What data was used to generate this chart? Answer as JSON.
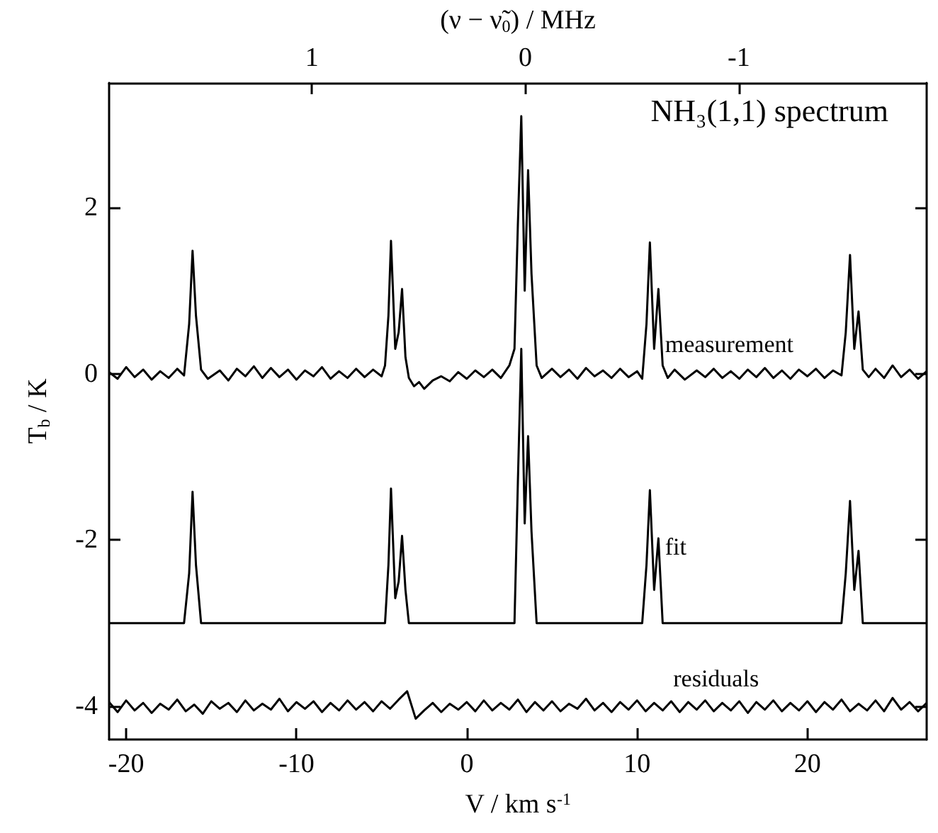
{
  "chart_data": {
    "type": "line",
    "title": "NH₃(1,1) spectrum",
    "xlabel": "V / km s$^{-1}$",
    "ylabel": "T$_{b}$ / K",
    "x2label": "(ν − ν̃$_{0}$) / MHz",
    "xlim": [
      -21,
      27
    ],
    "xticks": [
      -20,
      -10,
      0,
      10,
      20
    ],
    "x2lim": [
      1.95,
      -1.88
    ],
    "x2ticks": [
      1,
      0,
      -1
    ],
    "ylim": [
      -4.4,
      3.5
    ],
    "yticks": [
      -4,
      -2,
      0,
      2
    ],
    "series": [
      {
        "name": "measurement",
        "color": "#000000",
        "x": [
          -21,
          -20.5,
          -20,
          -19.5,
          -19,
          -18.5,
          -18,
          -17.5,
          -17,
          -16.6,
          -16.3,
          -16.1,
          -15.9,
          -15.6,
          -15.2,
          -14.5,
          -14,
          -13.5,
          -13,
          -12.5,
          -12,
          -11.5,
          -11,
          -10.5,
          -10,
          -9.5,
          -9,
          -8.5,
          -8,
          -7.5,
          -7,
          -6.5,
          -6,
          -5.5,
          -5,
          -4.8,
          -4.6,
          -4.45,
          -4.2,
          -4.0,
          -3.8,
          -3.6,
          -3.4,
          -3.1,
          -2.8,
          -2.5,
          -2,
          -1.5,
          -1,
          -0.5,
          0,
          0.5,
          1,
          1.5,
          2,
          2.5,
          2.8,
          3.0,
          3.2,
          3.4,
          3.6,
          3.8,
          4.1,
          4.4,
          5,
          5.5,
          6,
          6.5,
          7,
          7.5,
          8,
          8.5,
          9,
          9.5,
          10,
          10.3,
          10.55,
          10.75,
          11.0,
          11.25,
          11.5,
          11.8,
          12.2,
          12.8,
          13.5,
          14,
          14.5,
          15,
          15.5,
          16,
          16.5,
          17,
          17.5,
          18,
          18.5,
          19,
          19.5,
          20,
          20.5,
          21,
          21.5,
          22,
          22.25,
          22.5,
          22.75,
          23.0,
          23.25,
          23.6,
          24,
          24.5,
          25,
          25.5,
          26,
          26.5,
          27
        ],
        "values": [
          0.02,
          -0.06,
          0.08,
          -0.04,
          0.05,
          -0.07,
          0.03,
          -0.05,
          0.06,
          -0.02,
          0.6,
          1.48,
          0.7,
          0.05,
          -0.06,
          0.04,
          -0.08,
          0.06,
          -0.03,
          0.09,
          -0.05,
          0.07,
          -0.04,
          0.05,
          -0.07,
          0.04,
          -0.03,
          0.08,
          -0.06,
          0.03,
          -0.05,
          0.06,
          -0.04,
          0.05,
          -0.03,
          0.1,
          0.7,
          1.6,
          0.3,
          0.5,
          1.02,
          0.2,
          -0.05,
          -0.15,
          -0.1,
          -0.18,
          -0.08,
          -0.03,
          -0.09,
          0.02,
          -0.06,
          0.04,
          -0.04,
          0.05,
          -0.05,
          0.1,
          0.3,
          1.8,
          3.1,
          1.0,
          2.45,
          1.2,
          0.1,
          -0.05,
          0.06,
          -0.04,
          0.05,
          -0.06,
          0.07,
          -0.03,
          0.04,
          -0.05,
          0.06,
          -0.04,
          0.03,
          -0.06,
          0.6,
          1.58,
          0.3,
          1.02,
          0.1,
          -0.05,
          0.05,
          -0.07,
          0.04,
          -0.04,
          0.06,
          -0.05,
          0.03,
          -0.06,
          0.05,
          -0.04,
          0.07,
          -0.05,
          0.04,
          -0.06,
          0.05,
          -0.03,
          0.06,
          -0.05,
          0.04,
          -0.02,
          0.5,
          1.43,
          0.3,
          0.75,
          0.05,
          -0.04,
          0.06,
          -0.05,
          0.1,
          -0.04,
          0.05,
          -0.06,
          0.03
        ]
      },
      {
        "name": "fit",
        "color": "#000000",
        "x": [
          -21,
          -16.6,
          -16.3,
          -16.1,
          -15.9,
          -15.6,
          -4.8,
          -4.6,
          -4.45,
          -4.2,
          -4.0,
          -3.8,
          -3.6,
          -3.4,
          2.8,
          3.0,
          3.2,
          3.4,
          3.6,
          3.8,
          4.1,
          10.3,
          10.55,
          10.75,
          11.0,
          11.25,
          11.5,
          22,
          22.25,
          22.5,
          22.75,
          23.0,
          23.25,
          27
        ],
        "values": [
          -3,
          -3,
          -2.4,
          -1.42,
          -2.3,
          -3,
          -3,
          -2.3,
          -1.38,
          -2.7,
          -2.5,
          -1.95,
          -2.6,
          -3,
          -3,
          -1.3,
          0.3,
          -1.8,
          -0.75,
          -1.9,
          -3,
          -3,
          -2.3,
          -1.4,
          -2.6,
          -1.98,
          -3,
          -3,
          -2.4,
          -1.53,
          -2.6,
          -2.13,
          -3,
          -3
        ]
      },
      {
        "name": "residuals",
        "color": "#000000",
        "x": [
          -21,
          -20.5,
          -20,
          -19.5,
          -19,
          -18.5,
          -18,
          -17.5,
          -17,
          -16.5,
          -16,
          -15.5,
          -15,
          -14.5,
          -14,
          -13.5,
          -13,
          -12.5,
          -12,
          -11.5,
          -11,
          -10.5,
          -10,
          -9.5,
          -9,
          -8.5,
          -8,
          -7.5,
          -7,
          -6.5,
          -6,
          -5.5,
          -5,
          -4.5,
          -4,
          -3.5,
          -3,
          -2.5,
          -2,
          -1.5,
          -1,
          -0.5,
          0,
          0.5,
          1,
          1.5,
          2,
          2.5,
          3,
          3.5,
          4,
          4.5,
          5,
          5.5,
          6,
          6.5,
          7,
          7.5,
          8,
          8.5,
          9,
          9.5,
          10,
          10.5,
          11,
          11.5,
          12,
          12.5,
          13,
          13.5,
          14,
          14.5,
          15,
          15.5,
          16,
          16.5,
          17,
          17.5,
          18,
          18.5,
          19,
          19.5,
          20,
          20.5,
          21,
          21.5,
          22,
          22.5,
          23,
          23.5,
          24,
          24.5,
          25,
          25.5,
          26,
          26.5,
          27
        ],
        "values": [
          -3.95,
          -4.07,
          -3.93,
          -4.05,
          -3.96,
          -4.08,
          -3.97,
          -4.04,
          -3.92,
          -4.06,
          -3.98,
          -4.09,
          -3.94,
          -4.03,
          -3.96,
          -4.07,
          -3.93,
          -4.05,
          -3.97,
          -4.04,
          -3.91,
          -4.06,
          -3.95,
          -4.03,
          -3.94,
          -4.07,
          -3.96,
          -4.05,
          -3.93,
          -4.04,
          -3.95,
          -4.06,
          -3.94,
          -4.03,
          -3.92,
          -3.82,
          -4.15,
          -4.05,
          -3.96,
          -4.07,
          -3.97,
          -4.04,
          -3.95,
          -4.06,
          -3.93,
          -4.05,
          -3.96,
          -4.04,
          -3.92,
          -4.07,
          -3.95,
          -4.05,
          -3.94,
          -4.06,
          -3.97,
          -4.03,
          -3.91,
          -4.05,
          -3.96,
          -4.07,
          -3.95,
          -4.04,
          -3.93,
          -4.06,
          -3.96,
          -4.05,
          -3.94,
          -4.07,
          -3.95,
          -4.04,
          -3.93,
          -4.06,
          -3.96,
          -4.05,
          -3.94,
          -4.08,
          -3.95,
          -4.04,
          -3.93,
          -4.06,
          -3.96,
          -4.05,
          -3.94,
          -4.07,
          -3.95,
          -4.04,
          -3.92,
          -4.06,
          -3.97,
          -4.05,
          -3.93,
          -4.06,
          -3.9,
          -4.04,
          -3.95,
          -4.06,
          -3.96
        ]
      }
    ]
  }
}
